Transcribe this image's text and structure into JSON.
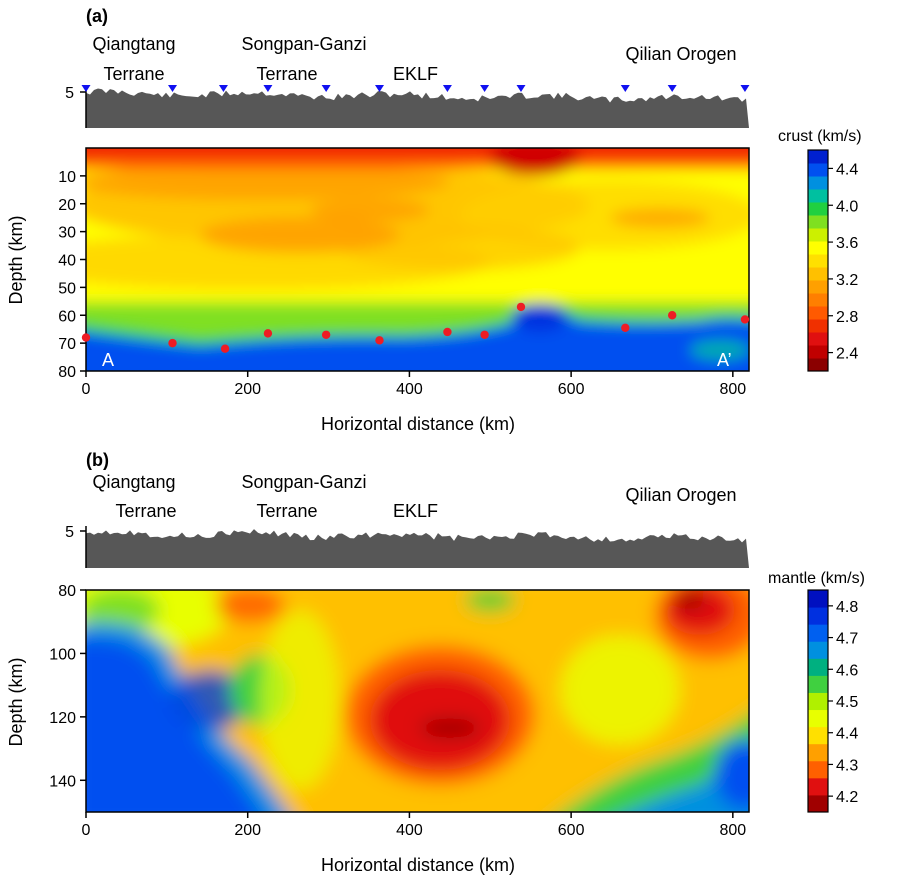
{
  "chart_data": [
    {
      "type": "heatmap",
      "panel_label": "(a)",
      "xlabel": "Horizontal distance (km)",
      "ylabel": "Depth (km)",
      "xlim": [
        0,
        820
      ],
      "ylim": [
        80,
        0
      ],
      "x_ticks": [
        0,
        200,
        400,
        600,
        800
      ],
      "y_ticks": [
        10,
        20,
        30,
        40,
        50,
        60,
        70,
        80
      ],
      "topo_tick": "5",
      "regions": [
        {
          "lines": [
            "Qiangtang",
            "Terrane"
          ],
          "x": 70
        },
        {
          "lines": [
            "Songpan-Ganzi",
            "Terrane"
          ],
          "x": 225
        },
        {
          "lines": [
            "EKLF"
          ],
          "x": 385
        },
        {
          "lines": [
            "Qilian Orogen"
          ],
          "x": 720
        }
      ],
      "stations_x": [
        0,
        107,
        170,
        225,
        297,
        363,
        447,
        493,
        538,
        667,
        725,
        815
      ],
      "moho_points": [
        {
          "x": 0,
          "depth": 68
        },
        {
          "x": 107,
          "depth": 70
        },
        {
          "x": 172,
          "depth": 72
        },
        {
          "x": 225,
          "depth": 66.5
        },
        {
          "x": 297,
          "depth": 67
        },
        {
          "x": 363,
          "depth": 69
        },
        {
          "x": 447,
          "depth": 66
        },
        {
          "x": 493,
          "depth": 67
        },
        {
          "x": 538,
          "depth": 57
        },
        {
          "x": 667,
          "depth": 64.5
        },
        {
          "x": 725,
          "depth": 60
        },
        {
          "x": 815,
          "depth": 61.5
        }
      ],
      "endpoints": {
        "start": "A",
        "end": "A’"
      },
      "colorbar": {
        "title": "crust (km/s)",
        "range": [
          2.2,
          4.6
        ],
        "ticks": [
          "2.4",
          "2.8",
          "3.2",
          "3.6",
          "4.0",
          "4.4"
        ],
        "colors": [
          "#8b0000",
          "#c00000",
          "#e01010",
          "#f03000",
          "#ff5a00",
          "#ff7f00",
          "#ffa000",
          "#ffc000",
          "#ffe000",
          "#ffff00",
          "#ccf000",
          "#7fe020",
          "#20d040",
          "#00c0a0",
          "#0090e0",
          "#0050f0",
          "#0020d0"
        ]
      }
    },
    {
      "type": "heatmap",
      "panel_label": "(b)",
      "xlabel": "Horizontal distance (km)",
      "ylabel": "Depth (km)",
      "xlim": [
        0,
        820
      ],
      "ylim": [
        150,
        80
      ],
      "x_ticks": [
        0,
        200,
        400,
        600,
        800
      ],
      "y_ticks": [
        80,
        100,
        120,
        140
      ],
      "topo_tick": "5",
      "regions": [
        {
          "lines": [
            "Qiangtang",
            "Terrane"
          ],
          "x": 70
        },
        {
          "lines": [
            "Songpan-Ganzi",
            "Terrane"
          ],
          "x": 225
        },
        {
          "lines": [
            "EKLF"
          ],
          "x": 385
        },
        {
          "lines": [
            "Qilian Orogen"
          ],
          "x": 720
        }
      ],
      "colorbar": {
        "title": "mantle (km/s)",
        "range": [
          4.15,
          4.85
        ],
        "ticks": [
          "4.2",
          "4.3",
          "4.4",
          "4.5",
          "4.6",
          "4.7",
          "4.8"
        ],
        "colors": [
          "#a00000",
          "#e01010",
          "#ff6000",
          "#ffa000",
          "#ffe000",
          "#e8ff00",
          "#b0f000",
          "#40d040",
          "#00b080",
          "#0090e0",
          "#0060f0",
          "#0030e0",
          "#0010c0"
        ]
      }
    }
  ]
}
